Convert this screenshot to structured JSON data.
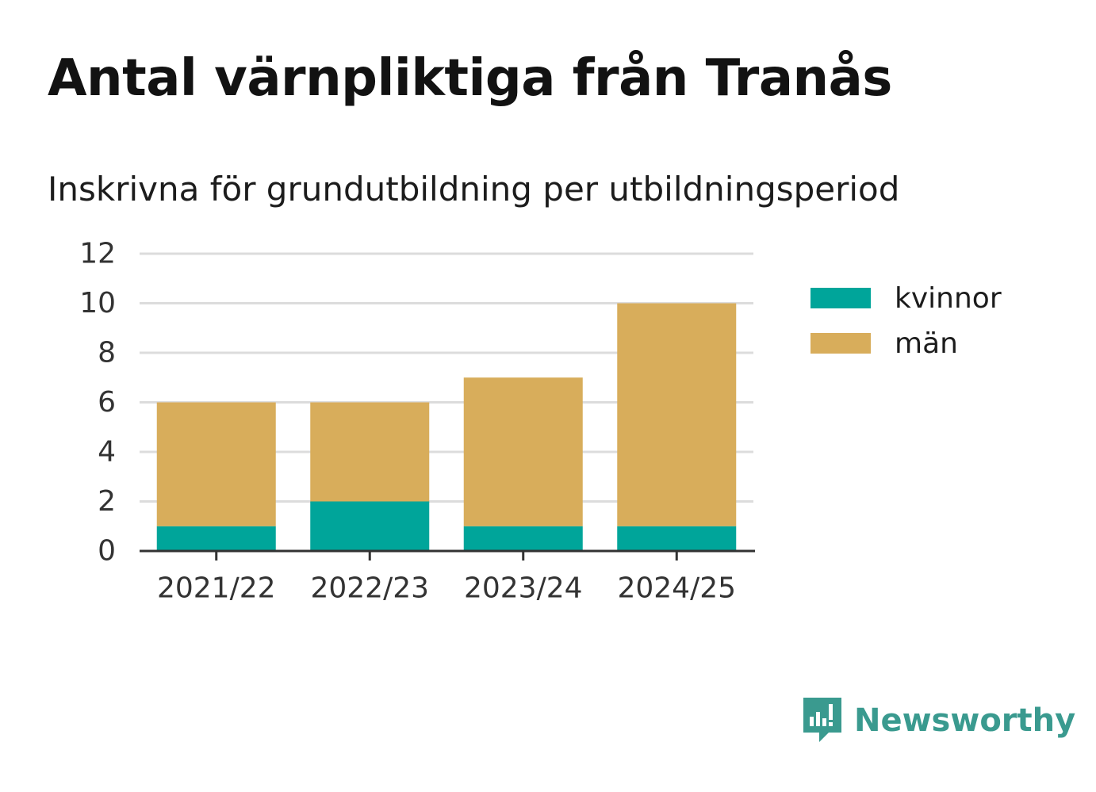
{
  "title": "Antal värnpliktiga från Tranås",
  "subtitle": "Inskrivna för grundutbildning per utbildningsperiod",
  "brand": {
    "name": "Newsworthy",
    "icon": "newsworthy-logo-icon",
    "color": "#3a9a8f"
  },
  "chart_data": {
    "type": "bar",
    "stacked": true,
    "categories": [
      "2021/22",
      "2022/23",
      "2023/24",
      "2024/25"
    ],
    "series": [
      {
        "name": "kvinnor",
        "color": "#00a59a",
        "values": [
          1,
          2,
          1,
          1
        ]
      },
      {
        "name": "män",
        "color": "#d8ad5b",
        "values": [
          5,
          4,
          6,
          9
        ]
      }
    ],
    "ylim": [
      0,
      12
    ],
    "yticks": [
      0,
      2,
      4,
      6,
      8,
      10,
      12
    ],
    "grid": true,
    "legend_position": "right"
  }
}
